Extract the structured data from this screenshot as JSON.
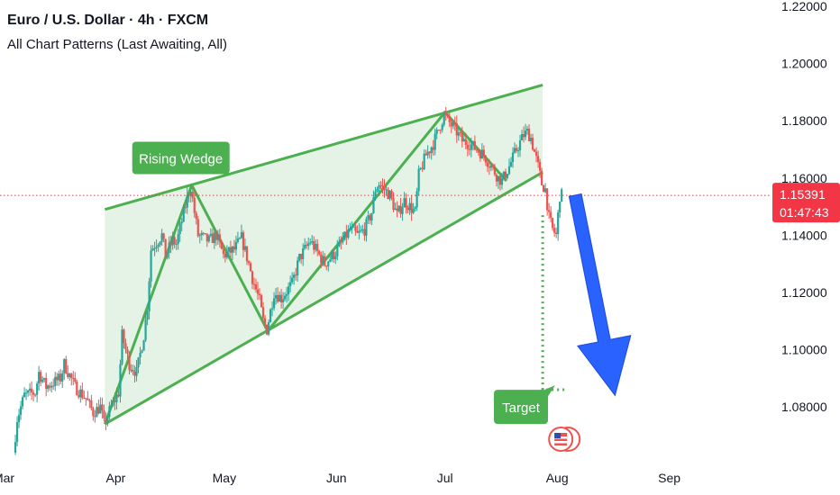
{
  "header": {
    "title": "Euro / U.S. Dollar · 4h · FXCM",
    "subtitle": "All Chart Patterns (Last Awaiting, All)"
  },
  "colors": {
    "up": "#26a69a",
    "down": "#ef5350",
    "pattern": "#4caf50",
    "pattern_fill": "#4caf5026",
    "label_bg": "#4caf50",
    "price_line": "#f23645",
    "arrow": "#2962ff"
  },
  "chart_data": {
    "type": "candlestick",
    "title": "Euro / U.S. Dollar · 4h · FXCM",
    "subtitle": "All Chart Patterns (Last Awaiting, All)",
    "x_ticks": [
      {
        "label": "Mar",
        "date": "2025-03-01"
      },
      {
        "label": "Apr",
        "date": "2025-04-01"
      },
      {
        "label": "May",
        "date": "2025-05-01"
      },
      {
        "label": "Jun",
        "date": "2025-06-01"
      },
      {
        "label": "Jul",
        "date": "2025-07-01"
      },
      {
        "label": "Aug",
        "date": "2025-08-01"
      },
      {
        "label": "Sep",
        "date": "2025-09-01"
      }
    ],
    "y_ticks": [
      "1.08000",
      "1.10000",
      "1.12000",
      "1.14000",
      "1.16000",
      "1.18000",
      "1.20000",
      "1.22000"
    ],
    "xlim": [
      "2025-02-28",
      "2025-09-29"
    ],
    "ylim": [
      1.0618,
      1.2222
    ],
    "price_path": [
      [
        "2025-03-04",
        1.064
      ],
      [
        "2025-03-05",
        1.076
      ],
      [
        "2025-03-07",
        1.084
      ],
      [
        "2025-03-10",
        1.085
      ],
      [
        "2025-03-11",
        1.092
      ],
      [
        "2025-03-13",
        1.087
      ],
      [
        "2025-03-17",
        1.09
      ],
      [
        "2025-03-18",
        1.095
      ],
      [
        "2025-03-21",
        1.087
      ],
      [
        "2025-03-24",
        1.083
      ],
      [
        "2025-03-26",
        1.078
      ],
      [
        "2025-03-28",
        1.08
      ],
      [
        "2025-03-29",
        1.074
      ],
      [
        "2025-03-31",
        1.08
      ],
      [
        "2025-04-02",
        1.085
      ],
      [
        "2025-04-03",
        1.105
      ],
      [
        "2025-04-05",
        1.095
      ],
      [
        "2025-04-07",
        1.092
      ],
      [
        "2025-04-09",
        1.105
      ],
      [
        "2025-04-10",
        1.115
      ],
      [
        "2025-04-11",
        1.135
      ],
      [
        "2025-04-14",
        1.14
      ],
      [
        "2025-04-15",
        1.133
      ],
      [
        "2025-04-17",
        1.138
      ],
      [
        "2025-04-18",
        1.137
      ],
      [
        "2025-04-21",
        1.153
      ],
      [
        "2025-04-22",
        1.157
      ],
      [
        "2025-04-23",
        1.148
      ],
      [
        "2025-04-24",
        1.14
      ],
      [
        "2025-04-27",
        1.138
      ],
      [
        "2025-04-29",
        1.14
      ],
      [
        "2025-05-01",
        1.133
      ],
      [
        "2025-05-04",
        1.135
      ],
      [
        "2025-05-06",
        1.139
      ],
      [
        "2025-05-08",
        1.13
      ],
      [
        "2025-05-09",
        1.125
      ],
      [
        "2025-05-11",
        1.117
      ],
      [
        "2025-05-12",
        1.11
      ],
      [
        "2025-05-13",
        1.107
      ],
      [
        "2025-05-15",
        1.12
      ],
      [
        "2025-05-17",
        1.118
      ],
      [
        "2025-05-20",
        1.123
      ],
      [
        "2025-05-22",
        1.132
      ],
      [
        "2025-05-25",
        1.138
      ],
      [
        "2025-05-27",
        1.134
      ],
      [
        "2025-05-29",
        1.13
      ],
      [
        "2025-06-01",
        1.134
      ],
      [
        "2025-06-03",
        1.138
      ],
      [
        "2025-06-05",
        1.142
      ],
      [
        "2025-06-07",
        1.14
      ],
      [
        "2025-06-09",
        1.142
      ],
      [
        "2025-06-11",
        1.148
      ],
      [
        "2025-06-12",
        1.156
      ],
      [
        "2025-06-13",
        1.158
      ],
      [
        "2025-06-16",
        1.154
      ],
      [
        "2025-06-18",
        1.147
      ],
      [
        "2025-06-20",
        1.152
      ],
      [
        "2025-06-23",
        1.148
      ],
      [
        "2025-06-24",
        1.161
      ],
      [
        "2025-06-26",
        1.168
      ],
      [
        "2025-06-28",
        1.172
      ],
      [
        "2025-07-01",
        1.182
      ],
      [
        "2025-07-02",
        1.18
      ],
      [
        "2025-07-04",
        1.177
      ],
      [
        "2025-07-06",
        1.173
      ],
      [
        "2025-07-08",
        1.172
      ],
      [
        "2025-07-10",
        1.17
      ],
      [
        "2025-07-12",
        1.168
      ],
      [
        "2025-07-14",
        1.164
      ],
      [
        "2025-07-16",
        1.16
      ],
      [
        "2025-07-17",
        1.159
      ],
      [
        "2025-07-19",
        1.164
      ],
      [
        "2025-07-21",
        1.17
      ],
      [
        "2025-07-23",
        1.175
      ],
      [
        "2025-07-24",
        1.176
      ],
      [
        "2025-07-25",
        1.174
      ],
      [
        "2025-07-26",
        1.169
      ],
      [
        "2025-07-27",
        1.164
      ],
      [
        "2025-07-28",
        1.158
      ],
      [
        "2025-07-29",
        1.156
      ],
      [
        "2025-07-30",
        1.146
      ],
      [
        "2025-07-31",
        1.142
      ],
      [
        "2025-08-01",
        1.14
      ],
      [
        "2025-08-02",
        1.1539
      ]
    ],
    "pattern": {
      "name": "Rising Wedge",
      "upper_line": [
        [
          "2025-03-29",
          1.149
        ],
        [
          "2025-07-28",
          1.1925
        ]
      ],
      "lower_line": [
        [
          "2025-03-29",
          1.074
        ],
        [
          "2025-07-28",
          1.162
        ]
      ],
      "zigzag": [
        [
          "2025-03-29",
          1.074
        ],
        [
          "2025-04-22",
          1.1575
        ],
        [
          "2025-05-13",
          1.1065
        ],
        [
          "2025-07-01",
          1.183
        ],
        [
          "2025-07-18",
          1.159
        ]
      ],
      "label_anchor": [
        "2025-04-19",
        1.167
      ]
    },
    "target": {
      "label": "Target",
      "from": [
        "2025-07-28",
        1.147
      ],
      "level": 1.086,
      "to_date": "2025-08-04",
      "label_anchor": [
        "2025-07-22",
        1.08
      ]
    },
    "projection_arrow": {
      "from": [
        "2025-08-06",
        1.154
      ],
      "to": [
        "2025-08-17",
        1.084
      ]
    },
    "last_price": {
      "value": "1.15391",
      "countdown": "01:47:43",
      "level": 1.15391
    }
  }
}
